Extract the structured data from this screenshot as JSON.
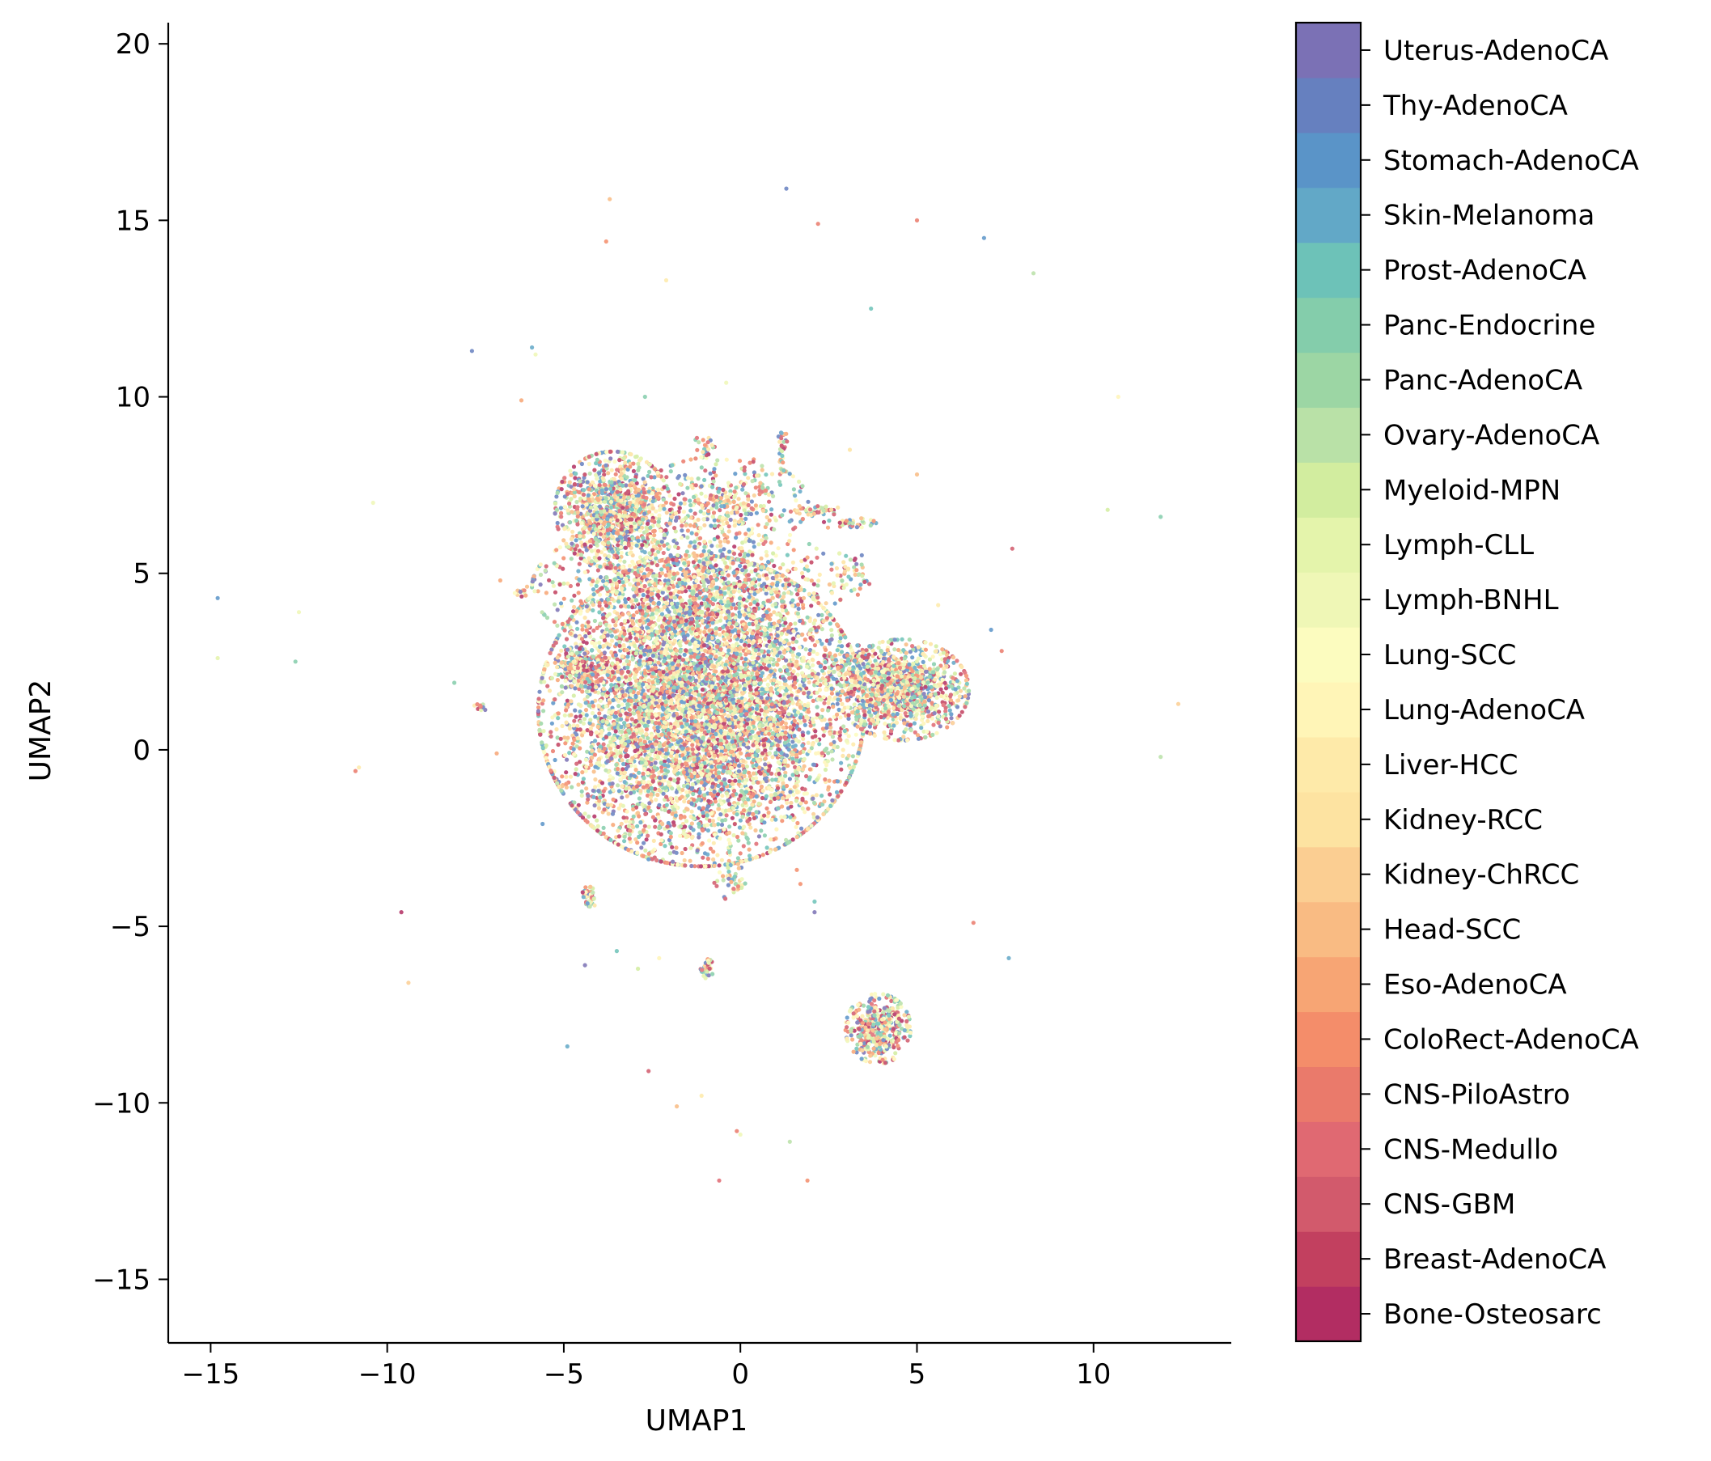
{
  "chart_data": {
    "type": "scatter",
    "xlabel": "UMAP1",
    "ylabel": "UMAP2",
    "xlim": [
      -16.2,
      13.9
    ],
    "ylim": [
      -16.8,
      20.6
    ],
    "x_ticks": [
      -15,
      -10,
      -5,
      0,
      5,
      10
    ],
    "y_ticks": [
      -15,
      -10,
      -5,
      0,
      5,
      10,
      15,
      20
    ],
    "x_tick_labels": [
      "−15",
      "−10",
      "−5",
      "0",
      "5",
      "10"
    ],
    "y_tick_labels": [
      "−15",
      "−10",
      "−5",
      "0",
      "5",
      "10",
      "15",
      "20"
    ],
    "grid": false,
    "point_alpha": 0.85,
    "colorbar": {
      "placement": "right",
      "categories": [
        "Bone-Osteosarc",
        "Breast-AdenoCA",
        "CNS-GBM",
        "CNS-Medullo",
        "CNS-PiloAstro",
        "ColoRect-AdenoCA",
        "Eso-AdenoCA",
        "Head-SCC",
        "Kidney-ChRCC",
        "Kidney-RCC",
        "Liver-HCC",
        "Lung-AdenoCA",
        "Lung-SCC",
        "Lymph-BNHL",
        "Lymph-CLL",
        "Myeloid-MPN",
        "Ovary-AdenoCA",
        "Panc-AdenoCA",
        "Panc-Endocrine",
        "Prost-AdenoCA",
        "Skin-Melanoma",
        "Stomach-AdenoCA",
        "Thy-AdenoCA",
        "Uterus-AdenoCA"
      ],
      "colors": [
        "#b22d62",
        "#c2405f",
        "#d25a6c",
        "#e06972",
        "#ea7a6b",
        "#f48d6a",
        "#f7a574",
        "#f9bb83",
        "#fbce92",
        "#fde3a1",
        "#feeaa9",
        "#fff5b7",
        "#fcfcbf",
        "#eff7b6",
        "#e4f4ab",
        "#d2ed9f",
        "#b9e1a7",
        "#9cd6a4",
        "#84cdab",
        "#6dc2b8",
        "#62a8c7",
        "#5a94c8",
        "#6680bf",
        "#7b71b5"
      ]
    },
    "clusters": [
      {
        "name": "main-blob",
        "cx": -1.1,
        "cy": 1.1,
        "sx": 2.1,
        "sy": 2.0,
        "n": 6500
      },
      {
        "name": "main-blob-top",
        "cx": -1.5,
        "cy": 4.6,
        "sx": 2.0,
        "sy": 0.9,
        "n": 1100
      },
      {
        "name": "upper-left-lobe",
        "cx": -3.6,
        "cy": 6.8,
        "sx": 0.75,
        "sy": 0.75,
        "n": 1000
      },
      {
        "name": "upper-mid",
        "cx": -0.5,
        "cy": 7.0,
        "sx": 1.1,
        "sy": 0.6,
        "n": 380
      },
      {
        "name": "right-cluster",
        "cx": 4.6,
        "cy": 1.7,
        "sx": 0.85,
        "sy": 0.65,
        "n": 1100
      },
      {
        "name": "right-cluster-bridge",
        "cx": 3.2,
        "cy": 2.3,
        "sx": 0.6,
        "sy": 0.3,
        "n": 150
      },
      {
        "name": "lower-cluster",
        "cx": 3.9,
        "cy": -7.9,
        "sx": 0.42,
        "sy": 0.45,
        "n": 450
      },
      {
        "name": "left-arm",
        "cx": -4.5,
        "cy": 2.3,
        "sx": 0.35,
        "sy": 0.3,
        "n": 200
      },
      {
        "name": "small-neg4",
        "cx": -4.3,
        "cy": -4.2,
        "sx": 0.1,
        "sy": 0.15,
        "n": 50
      },
      {
        "name": "small-neg6",
        "cx": -0.95,
        "cy": -6.2,
        "sx": 0.08,
        "sy": 0.15,
        "n": 35
      },
      {
        "name": "small-streak",
        "cx": -0.3,
        "cy": -3.7,
        "sx": 0.2,
        "sy": 0.25,
        "n": 45
      },
      {
        "name": "spike-1",
        "cx": 1.2,
        "cy": 8.5,
        "sx": 0.07,
        "sy": 0.3,
        "n": 30
      },
      {
        "name": "spike-2",
        "cx": 2.2,
        "cy": 6.8,
        "sx": 0.3,
        "sy": 0.08,
        "n": 40
      },
      {
        "name": "spike-3",
        "cx": 3.1,
        "cy": 6.4,
        "sx": 0.35,
        "sy": 0.08,
        "n": 40
      },
      {
        "name": "spike-4",
        "cx": 3.2,
        "cy": 5.0,
        "sx": 0.35,
        "sy": 0.3,
        "n": 45
      },
      {
        "name": "spike-5",
        "cx": -1.0,
        "cy": 8.6,
        "sx": 0.15,
        "sy": 0.15,
        "n": 25
      },
      {
        "name": "small-left",
        "cx": -7.4,
        "cy": 1.2,
        "sx": 0.1,
        "sy": 0.05,
        "n": 12
      },
      {
        "name": "small-left2",
        "cx": -6.2,
        "cy": 4.5,
        "sx": 0.12,
        "sy": 0.07,
        "n": 12
      }
    ],
    "outliers": [
      [
        -14.8,
        4.3
      ],
      [
        -14.8,
        2.6
      ],
      [
        -12.5,
        3.9
      ],
      [
        -12.6,
        2.5
      ],
      [
        -10.9,
        -0.6
      ],
      [
        -10.8,
        -0.5
      ],
      [
        -10.4,
        7.0
      ],
      [
        -9.6,
        -4.6
      ],
      [
        -9.4,
        -6.6
      ],
      [
        -8.1,
        1.9
      ],
      [
        -7.6,
        11.3
      ],
      [
        -6.9,
        -0.1
      ],
      [
        -6.8,
        4.8
      ],
      [
        -6.2,
        9.9
      ],
      [
        -5.9,
        11.4
      ],
      [
        -5.8,
        11.2
      ],
      [
        -5.6,
        -2.1
      ],
      [
        -4.9,
        -8.4
      ],
      [
        -4.4,
        -6.1
      ],
      [
        -3.8,
        14.4
      ],
      [
        -3.7,
        15.6
      ],
      [
        -3.5,
        -5.7
      ],
      [
        -2.9,
        -6.2
      ],
      [
        -2.7,
        10.0
      ],
      [
        -2.6,
        -9.1
      ],
      [
        -2.6,
        -3.1
      ],
      [
        -2.3,
        -5.9
      ],
      [
        -2.1,
        13.3
      ],
      [
        -1.8,
        -10.1
      ],
      [
        -1.1,
        -9.8
      ],
      [
        -0.6,
        -12.2
      ],
      [
        -0.4,
        10.4
      ],
      [
        -0.1,
        -10.8
      ],
      [
        0.0,
        -10.9
      ],
      [
        1.3,
        15.9
      ],
      [
        1.4,
        -11.1
      ],
      [
        1.6,
        -3.4
      ],
      [
        1.7,
        -3.8
      ],
      [
        1.9,
        -12.2
      ],
      [
        2.1,
        -4.3
      ],
      [
        2.1,
        -4.6
      ],
      [
        2.2,
        14.9
      ],
      [
        2.3,
        -1.3
      ],
      [
        3.1,
        8.5
      ],
      [
        3.7,
        12.5
      ],
      [
        5.0,
        15.0
      ],
      [
        5.6,
        4.1
      ],
      [
        5.0,
        7.8
      ],
      [
        6.6,
        -4.9
      ],
      [
        6.9,
        14.5
      ],
      [
        7.1,
        3.4
      ],
      [
        7.4,
        2.8
      ],
      [
        7.6,
        -5.9
      ],
      [
        7.7,
        5.7
      ],
      [
        8.3,
        13.5
      ],
      [
        10.4,
        6.8
      ],
      [
        10.7,
        10.0
      ],
      [
        11.9,
        6.6
      ],
      [
        11.9,
        -0.2
      ],
      [
        12.4,
        1.3
      ]
    ]
  }
}
